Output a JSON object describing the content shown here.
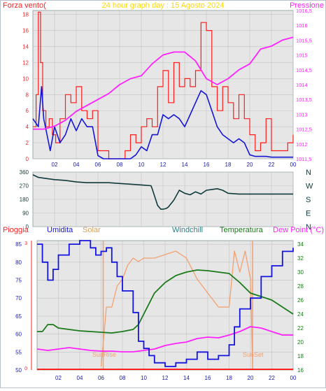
{
  "title": "24 hour graph day : 15 Agosto 2024",
  "colors": {
    "plot_bg": "#e6e6e6",
    "grid": "#c4c4c4",
    "wind": "#ff1a1a",
    "gust_avg": "#1515d8",
    "pressure": "#ff22ff",
    "dir": "#103a3a",
    "humidity": "#1414e0",
    "solar": "#f3a070",
    "windchill": "#2a8080",
    "temperature": "#1a7a1a",
    "dewpoint": "#ff22ff",
    "rain": "#ff2020",
    "sun_line": "#f3a070"
  },
  "time_ticks": [
    "02",
    "04",
    "06",
    "08",
    "10",
    "12",
    "14",
    "16",
    "18",
    "20",
    "22",
    "00"
  ],
  "panel1": {
    "left_label": "Forza vento(",
    "right_label": "Pressione",
    "left_ticks": [
      "0",
      "2",
      "4",
      "6",
      "8",
      "10",
      "12",
      "14",
      "16",
      "18"
    ],
    "right_ticks": [
      "1011,5",
      "1012",
      "1012,5",
      "1013",
      "1013,5",
      "1014",
      "1014,5",
      "1015",
      "1015,5",
      "1016",
      "1016,5"
    ]
  },
  "panel2": {
    "ticks": [
      "0",
      "90",
      "180",
      "270",
      "360"
    ],
    "compass": [
      "N",
      "W",
      "S",
      "E",
      "N"
    ]
  },
  "panel3": {
    "labels": {
      "rain": "Pioggia",
      "humidity": "Umidita",
      "solar": "Solar",
      "windchill": "Windchill",
      "temperature": "Temperatura",
      "dewpoint": "Dew Point (°C)"
    },
    "left_ticks": [
      "50",
      "55",
      "60",
      "65",
      "70",
      "75",
      "80",
      "85"
    ],
    "right_ticks": [
      "16",
      "18",
      "20",
      "22",
      "24",
      "26",
      "28",
      "30",
      "32",
      "34"
    ],
    "rain_ticks": [
      "0",
      "3"
    ],
    "sunrise": "SunRise",
    "sunset": "SunSet"
  },
  "chart_data": [
    {
      "type": "line",
      "x_range_hours": [
        0,
        24
      ],
      "ylim_left": [
        0,
        18.5
      ],
      "ylim_right": [
        1011.5,
        1016.5
      ],
      "series": [
        {
          "name": "Forza vento",
          "axis": "left",
          "x": [
            0,
            0.3,
            0.5,
            0.7,
            0.9,
            1.2,
            1.5,
            1.8,
            2.1,
            2.5,
            3,
            3.5,
            4,
            4.5,
            5,
            5.5,
            6,
            6.5,
            7,
            7.5,
            8,
            8.5,
            9,
            9.5,
            10,
            10.5,
            11,
            11.5,
            12,
            12.5,
            13,
            13.5,
            14,
            14.5,
            15,
            15.5,
            16,
            16.5,
            17,
            17.5,
            18,
            18.5,
            19,
            19.5,
            20,
            20.5,
            21,
            21.5,
            22,
            22.5,
            23,
            23.5,
            24
          ],
          "values": [
            4,
            8,
            18.3,
            12,
            6,
            4,
            5,
            3,
            2,
            5,
            8,
            7,
            9,
            6,
            5,
            6,
            1,
            1,
            0,
            0,
            0,
            1,
            3,
            2,
            4,
            5,
            4,
            9,
            11,
            7,
            12,
            9,
            10,
            9,
            11,
            17,
            16,
            9,
            6,
            9,
            7,
            5,
            8,
            5,
            3,
            1,
            2,
            5,
            1,
            1,
            1,
            2,
            3
          ]
        },
        {
          "name": "",
          "axis": "left",
          "x": [
            0,
            0.5,
            0.8,
            1,
            1.3,
            1.6,
            2,
            2.5,
            3,
            3.5,
            4,
            4.5,
            5,
            5.5,
            6,
            6.5,
            7,
            7.5,
            8,
            8.5,
            9,
            9.5,
            10,
            10.5,
            11,
            11.5,
            12,
            12.5,
            13,
            13.5,
            14,
            14.5,
            15,
            15.5,
            16,
            16.5,
            17,
            17.5,
            18,
            18.5,
            19,
            19.5,
            20,
            20.5,
            21,
            21.5,
            22,
            22.5,
            23,
            23.5,
            24
          ],
          "values": [
            5,
            4,
            9,
            5,
            3,
            1,
            4,
            2,
            3,
            5,
            3.5,
            5,
            4,
            4,
            0.4,
            0,
            0,
            0,
            0,
            0,
            0,
            0.5,
            1.5,
            1,
            3,
            3,
            5.5,
            5,
            5.5,
            5,
            4,
            5.5,
            7,
            8.5,
            8,
            6,
            4,
            3,
            2.5,
            2,
            2.5,
            2,
            0.5,
            0.3,
            0.3,
            0.3,
            0.2,
            0.2,
            0.2,
            0.2,
            0.2
          ]
        },
        {
          "name": "Pressione",
          "axis": "right",
          "x": [
            0,
            1,
            2,
            3,
            4,
            5,
            6,
            7,
            8,
            9,
            10,
            11,
            12,
            13,
            14,
            15,
            16,
            17,
            18,
            19,
            20,
            21,
            22,
            23,
            24
          ],
          "values": [
            1012.5,
            1012.5,
            1012.6,
            1012.8,
            1013.1,
            1013.3,
            1013.5,
            1013.7,
            1014,
            1014.2,
            1014.3,
            1014.7,
            1015,
            1015.1,
            1015.1,
            1014.8,
            1014.2,
            1014,
            1014.2,
            1014.5,
            1014.7,
            1015.2,
            1015.3,
            1015.5,
            1015.6
          ]
        }
      ]
    },
    {
      "type": "line",
      "x_range_hours": [
        0,
        24
      ],
      "ylim": [
        0,
        360
      ],
      "series": [
        {
          "name": "",
          "x": [
            0,
            0.5,
            1,
            2,
            3,
            4,
            5,
            6,
            7,
            8,
            9,
            10,
            10.9,
            11,
            11.5,
            11.8,
            12,
            12.3,
            12.5,
            13,
            13.5,
            14,
            14.5,
            15,
            15.5,
            16,
            16.5,
            17,
            17.5,
            18,
            19,
            20,
            21,
            22,
            23,
            24
          ],
          "values": [
            342,
            325,
            320,
            310,
            305,
            295,
            290,
            290,
            290,
            285,
            280,
            275,
            270,
            250,
            140,
            115,
            115,
            120,
            130,
            175,
            240,
            220,
            210,
            230,
            215,
            240,
            245,
            250,
            240,
            220,
            215,
            215,
            215,
            215,
            215,
            215
          ]
        }
      ]
    },
    {
      "type": "line",
      "x_range_hours": [
        0,
        24
      ],
      "ylim_left": [
        50,
        86
      ],
      "ylim_right": [
        16,
        34.5
      ],
      "series": [
        {
          "name": "Umidita",
          "axis": "left",
          "x": [
            0,
            0.5,
            1,
            1.5,
            2,
            3,
            4,
            5,
            5.5,
            6,
            6.5,
            7,
            7.5,
            8,
            9,
            9.5,
            10,
            10.5,
            11,
            12,
            13,
            14,
            15,
            16,
            17,
            18,
            18.5,
            19,
            20,
            21,
            22,
            23,
            24
          ],
          "values": [
            85,
            80,
            75,
            78,
            82,
            85,
            86,
            84,
            82,
            83,
            84,
            80,
            76,
            72,
            66,
            58,
            56,
            54,
            52,
            51,
            52,
            53,
            55,
            53,
            54,
            57,
            62,
            67,
            70,
            76,
            79,
            83,
            84
          ]
        },
        {
          "name": "Solar",
          "axis": "right",
          "x": [
            6,
            6.5,
            7,
            7.5,
            8,
            8.5,
            9,
            9.5,
            10,
            11,
            12,
            13,
            14,
            15,
            16,
            17,
            18,
            18.5,
            19,
            19.5,
            20,
            20.2
          ],
          "values": [
            16.5,
            25,
            25,
            28,
            29,
            31,
            32,
            31.5,
            32,
            32,
            32.5,
            33,
            32,
            29,
            27,
            25,
            25,
            33,
            30,
            33,
            29,
            16.5
          ]
        },
        {
          "name": "Temperatura",
          "axis": "right",
          "x": [
            0,
            0.5,
            1,
            1.5,
            2,
            3,
            4,
            5,
            6,
            7,
            8,
            9,
            9.5,
            10,
            11,
            12,
            13,
            14,
            15,
            16,
            17,
            18,
            19,
            20,
            21,
            22,
            23,
            24
          ],
          "values": [
            21.5,
            21.5,
            22.5,
            22.5,
            22,
            21.8,
            21.6,
            21.5,
            21.4,
            21.3,
            21.5,
            21.8,
            22.5,
            24,
            27,
            28.5,
            29.5,
            30,
            30.3,
            30.2,
            30,
            29.8,
            28.5,
            27,
            26.5,
            26,
            25,
            24
          ]
        },
        {
          "name": "Dew Point (°C)",
          "axis": "right",
          "x": [
            0,
            1,
            2,
            3,
            4,
            5,
            6,
            7,
            8,
            9,
            10,
            11,
            12,
            13,
            14,
            15,
            16,
            17,
            18,
            19,
            20,
            21,
            22,
            23,
            24
          ],
          "values": [
            19,
            18.8,
            19,
            19.2,
            19,
            18.8,
            18.7,
            18.7,
            18.6,
            18.6,
            18.8,
            19,
            19.5,
            19.8,
            20,
            20.5,
            20.7,
            20.6,
            21,
            21.5,
            22.2,
            22,
            21.5,
            21,
            21
          ]
        },
        {
          "name": "Pioggia",
          "axis": "rain",
          "x": [
            0,
            24
          ],
          "values": [
            0,
            0
          ]
        }
      ]
    }
  ]
}
